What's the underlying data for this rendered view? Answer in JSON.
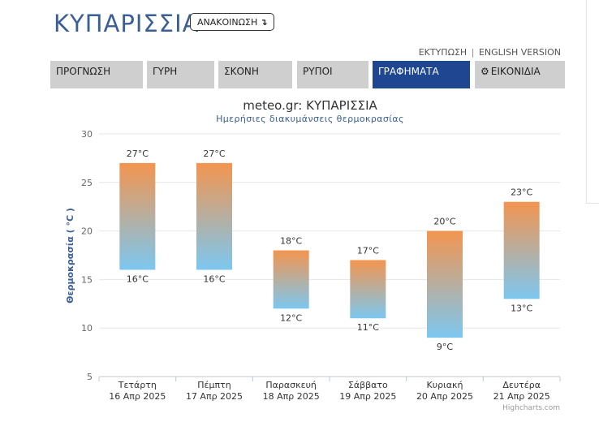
{
  "header": {
    "title": "ΚΥΠΑΡΙΣΣΙΑ",
    "announce_label": "ΑΝΑΚΟΙΝΩΣΗ",
    "announce_icon": "arrow-down-right-icon",
    "print_link": "ΕΚΤΥΠΩΣΗ",
    "link_separator": "|",
    "english_link": "ENGLISH VERSION"
  },
  "tabs": [
    {
      "label": "ΠΡΟΓΝΩΣΗ"
    },
    {
      "label": "ΓΥΡΗ"
    },
    {
      "label": "ΣΚΟΝΗ"
    },
    {
      "label": "ΡΥΠΟΙ"
    },
    {
      "label": "ΓΡΑΦΗΜΑΤΑ",
      "active": true
    },
    {
      "label": "ΕΙΚΟΝΙΔΙΑ",
      "icon": "gear-icon"
    }
  ],
  "colors": {
    "accent": "#1f4791",
    "title": "#3a5e96",
    "bar_top": "#f3954f",
    "bar_bottom": "#7cc7f0"
  },
  "chart_data": {
    "type": "bar",
    "subtype": "range",
    "title": "meteo.gr: ΚΥΠΑΡΙΣΣΙΑ",
    "subtitle": "Ημερήσιες διακυμάνσεις θερμοκρασίας",
    "ylabel": "Θερμοκρασία ( °C )",
    "ylim": [
      5,
      30
    ],
    "yticks": [
      5,
      10,
      15,
      20,
      25,
      30
    ],
    "grid": true,
    "unit": "°C",
    "categories": [
      [
        "Τετάρτη",
        "16 Απρ 2025"
      ],
      [
        "Πέμπτη",
        "17 Απρ 2025"
      ],
      [
        "Παρασκευή",
        "18 Απρ 2025"
      ],
      [
        "Σάββατο",
        "19 Απρ 2025"
      ],
      [
        "Κυριακή",
        "20 Απρ 2025"
      ],
      [
        "Δευτέρα",
        "21 Απρ 2025"
      ]
    ],
    "low": [
      16,
      16,
      12,
      11,
      9,
      13
    ],
    "high": [
      27,
      27,
      18,
      17,
      20,
      23
    ],
    "credits": "Highcharts.com"
  }
}
